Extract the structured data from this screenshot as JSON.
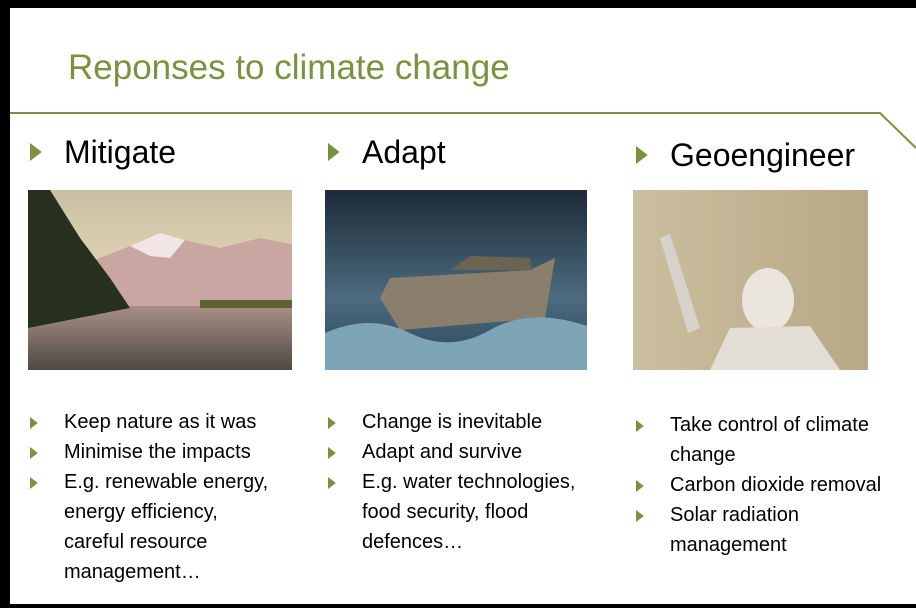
{
  "title": "Reponses to climate change",
  "columns": [
    {
      "heading": "Mitigate",
      "bullets": [
        [
          "Keep nature as it was"
        ],
        [
          "Minimise the impacts"
        ],
        [
          "E.g. renewable energy,",
          "energy efficiency,",
          "careful resource",
          "management…"
        ]
      ]
    },
    {
      "heading": "Adapt",
      "bullets": [
        [
          "Change is inevitable"
        ],
        [
          "Adapt and survive"
        ],
        [
          "E.g. water technologies,",
          "food security, flood",
          "defences…"
        ]
      ]
    },
    {
      "heading": "Geoengineer",
      "bullets": [
        [
          "Take control of climate",
          "change"
        ],
        [
          "Carbon dioxide removal"
        ],
        [
          "Solar radiation",
          "management"
        ]
      ]
    }
  ]
}
